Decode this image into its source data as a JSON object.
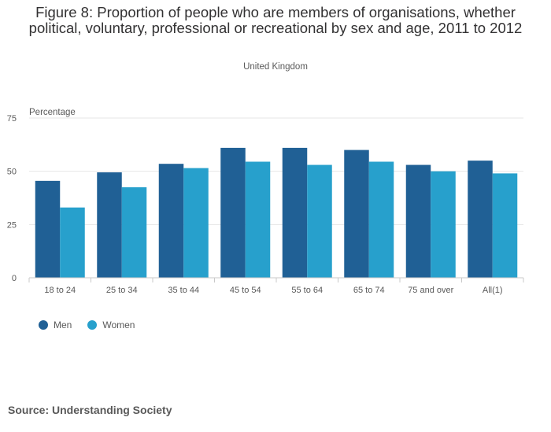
{
  "chart_data": {
    "type": "bar",
    "title": "Figure 8: Proportion of people who are members of organisations, whether political, voluntary, professional or recreational by sex and age, 2011 to 2012",
    "subtitle": "United Kingdom",
    "ylabel": "Percentage",
    "xlabel": "",
    "ylim": [
      0,
      75
    ],
    "yticks": [
      0,
      25,
      50,
      75
    ],
    "categories": [
      "18 to 24",
      "25 to 34",
      "35 to 44",
      "45 to 54",
      "55 to 64",
      "65 to 74",
      "75 and over",
      "All(1)"
    ],
    "series": [
      {
        "name": "Men",
        "color": "#206095",
        "values": [
          45.5,
          49.5,
          53.5,
          61,
          61,
          60,
          53,
          55
        ]
      },
      {
        "name": "Women",
        "color": "#27a0cc",
        "values": [
          33,
          42.5,
          51.5,
          54.5,
          53,
          54.5,
          50,
          49
        ]
      }
    ],
    "legend_position": "bottom-left",
    "grid": true
  },
  "source": "Source: Understanding Society"
}
